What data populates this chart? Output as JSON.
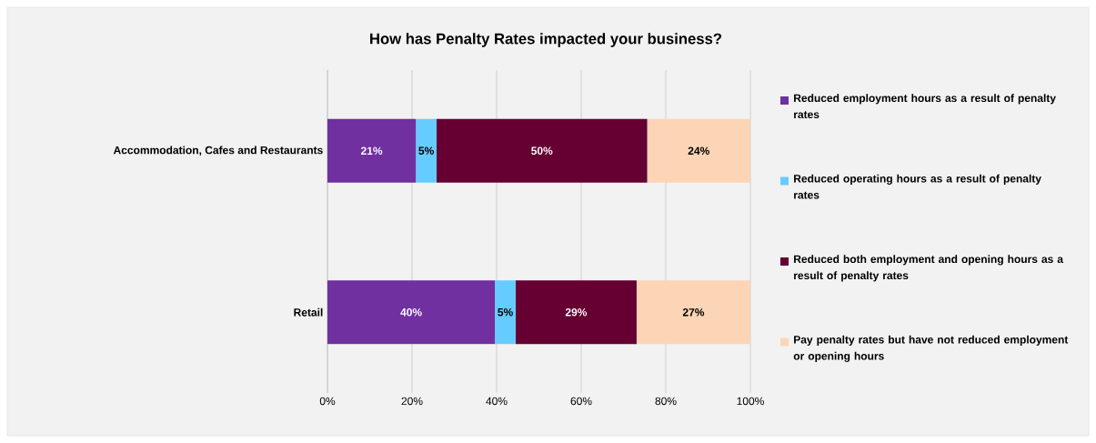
{
  "chart_data": {
    "type": "bar",
    "orientation": "horizontal",
    "stacked": true,
    "title": "How has Penalty Rates impacted your business?",
    "categories": [
      "Accommodation, Cafes and Restaurants",
      "Retail"
    ],
    "series": [
      {
        "name": "Reduced employment hours as a result of penalty rates",
        "color": "#7030a0",
        "values": [
          20.9,
          39.6
        ],
        "value_labels": [
          "21%",
          "40%"
        ]
      },
      {
        "name": "Reduced operating hours as a result of penalty rates",
        "color": "#66ccff",
        "values": [
          4.9,
          4.9
        ],
        "value_labels": [
          "5%",
          "5%"
        ]
      },
      {
        "name": "Reduced both employment and opening hours as a result of penalty rates",
        "color": "#660033",
        "values": [
          49.8,
          28.6
        ],
        "value_labels": [
          "50%",
          "29%"
        ]
      },
      {
        "name": "Pay penalty rates but have not reduced employment or opening hours",
        "color": "#fbd5b5",
        "values": [
          24.4,
          26.9
        ],
        "value_labels": [
          "24%",
          "27%"
        ]
      }
    ],
    "xlim": [
      0,
      100
    ],
    "xticks": [
      {
        "value": 0,
        "label": "0%"
      },
      {
        "value": 20,
        "label": "20%"
      },
      {
        "value": 40,
        "label": "40%"
      },
      {
        "value": 60,
        "label": "60%"
      },
      {
        "value": 80,
        "label": "80%"
      },
      {
        "value": 100,
        "label": "100%"
      }
    ],
    "grid": "x",
    "legend": "right"
  }
}
